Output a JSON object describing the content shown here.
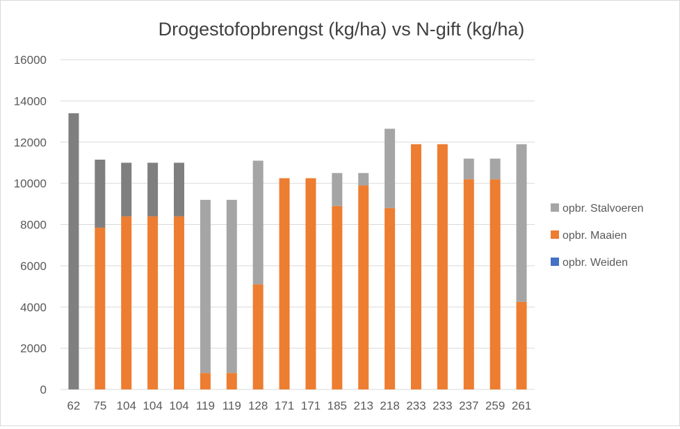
{
  "chart_data": {
    "type": "bar",
    "stacked": true,
    "title": "Drogestofopbrengst (kg/ha) vs N-gift (kg/ha)",
    "xlabel": "",
    "ylabel": "",
    "ylim": [
      0,
      16000
    ],
    "yticks": [
      0,
      2000,
      4000,
      6000,
      8000,
      10000,
      12000,
      14000,
      16000
    ],
    "grid": true,
    "legend_position": "right",
    "categories": [
      "62",
      "75",
      "104",
      "104",
      "104",
      "119",
      "119",
      "128",
      "171",
      "171",
      "185",
      "213",
      "218",
      "233",
      "233",
      "237",
      "259",
      "261"
    ],
    "series": [
      {
        "name": "opbr. Weiden",
        "color": "#4472c4",
        "values": [
          0,
          0,
          0,
          0,
          0,
          0,
          0,
          0,
          0,
          0,
          0,
          0,
          0,
          0,
          0,
          0,
          0,
          0
        ]
      },
      {
        "name": "opbr. Maaien",
        "color": "#ed7d31",
        "values": [
          0,
          7850,
          8400,
          8400,
          8400,
          800,
          800,
          5100,
          10250,
          10250,
          8900,
          9900,
          8800,
          11900,
          11900,
          10200,
          10200,
          4250
        ]
      },
      {
        "name": "opbr. Stalvoeren",
        "color": "#a5a5a5",
        "values": [
          13400,
          3300,
          2600,
          2600,
          2600,
          8400,
          8400,
          6000,
          0,
          0,
          1600,
          600,
          3850,
          0,
          0,
          1000,
          1000,
          7650
        ]
      }
    ],
    "dark_color": "#7f7f7f",
    "dark_stalvoeren_indices": [
      0,
      1,
      2,
      3,
      4
    ]
  }
}
